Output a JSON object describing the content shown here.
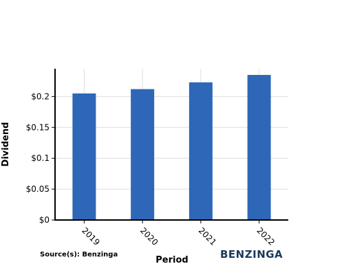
{
  "chart_data": {
    "type": "bar",
    "categories": [
      "2019",
      "2020",
      "2021",
      "2022"
    ],
    "values": [
      0.205,
      0.212,
      0.223,
      0.235
    ],
    "xlabel": "Period",
    "ylabel": "Dividend",
    "ylim": [
      0,
      0.245
    ],
    "yticks": [
      0,
      0.05,
      0.1,
      0.15,
      0.2
    ],
    "ytick_labels": [
      "$0",
      "$0.05",
      "$0.1",
      "$0.15",
      "$0.2"
    ],
    "grid": true,
    "bar_color": "#2f67b8",
    "gridline_color": "#dddddd",
    "axis_color": "#000000"
  },
  "footer": {
    "source": "Source(s): Benzinga",
    "brand": "BENZINGA"
  }
}
